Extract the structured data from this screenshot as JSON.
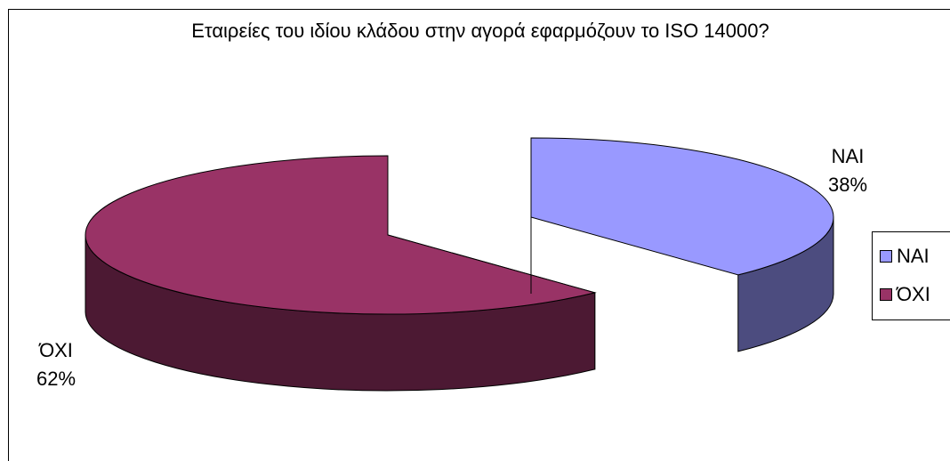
{
  "chart_data": {
    "type": "pie",
    "title": "Εταιρείες του ιδίου κλάδου στην αγορά εφαρμόζουν το ISO 14000?",
    "slices": [
      {
        "label": "ΝΑΙ",
        "value": 38,
        "value_label": "38%",
        "color": "#9999ff",
        "side_color": "#4c4c7f"
      },
      {
        "label": "ΌΧΙ",
        "value": 62,
        "value_label": "62%",
        "color": "#993366",
        "side_color": "#4c1933"
      }
    ],
    "style": "3d-exploded",
    "legend": {
      "position": "right",
      "items": [
        "ΝΑΙ",
        "ΌΧΙ"
      ]
    }
  }
}
